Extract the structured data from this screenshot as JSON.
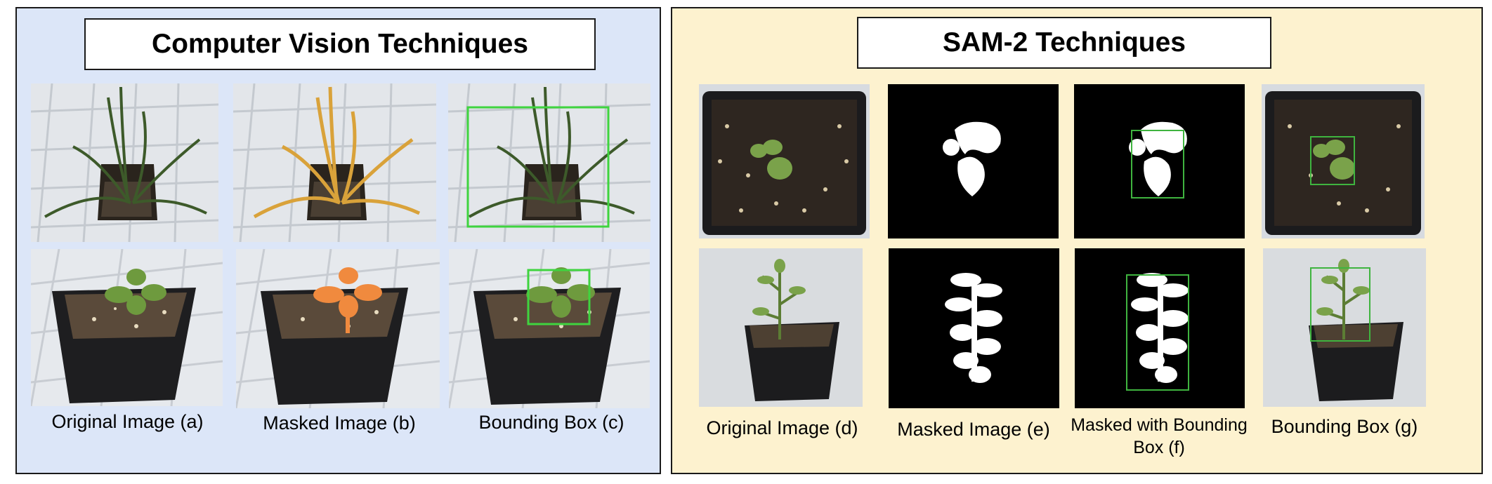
{
  "left_panel": {
    "title": "Computer Vision Techniques",
    "captions": [
      "Original Image (a)",
      "Masked Image (b)",
      "Bounding Box (c)"
    ]
  },
  "right_panel": {
    "title": "SAM-2 Techniques",
    "captions": [
      "Original Image (d)",
      "Masked Image (e)",
      "Masked with Bounding Box (f)",
      "Bounding Box (g)"
    ]
  },
  "colors": {
    "left_panel_bg": "#dce6f8",
    "right_panel_bg": "#fdf2cf",
    "bounding_box": "#3fd43f",
    "mask_grass": "#d9a23a",
    "mask_seedling": "#f08a3e"
  }
}
